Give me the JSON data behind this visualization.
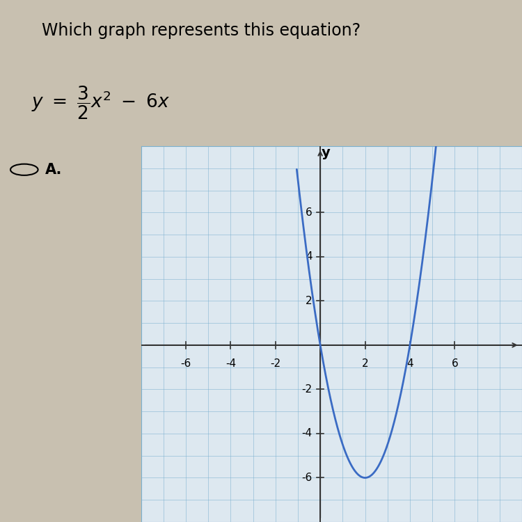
{
  "title": "Which graph represents this equation?",
  "a": 1.5,
  "b": -6,
  "c": 0,
  "curve_color": "#3a6bc4",
  "curve_linewidth": 2.0,
  "grid_color": "#7ab0d0",
  "grid_alpha": 0.6,
  "bg_color": "#c8c0b0",
  "plot_bg_color": "#dde8f0",
  "plot_border_color": "#7ab0d0",
  "x_ticks": [
    -6,
    -4,
    -2,
    2,
    4,
    6
  ],
  "y_ticks": [
    -6,
    -4,
    -2,
    2,
    4,
    6
  ],
  "xlim": [
    -8,
    9
  ],
  "ylim": [
    -8,
    9
  ],
  "x_plot_start": -1.05,
  "x_plot_end": 8.5,
  "axis_color": "#333333",
  "tick_fontsize": 11
}
